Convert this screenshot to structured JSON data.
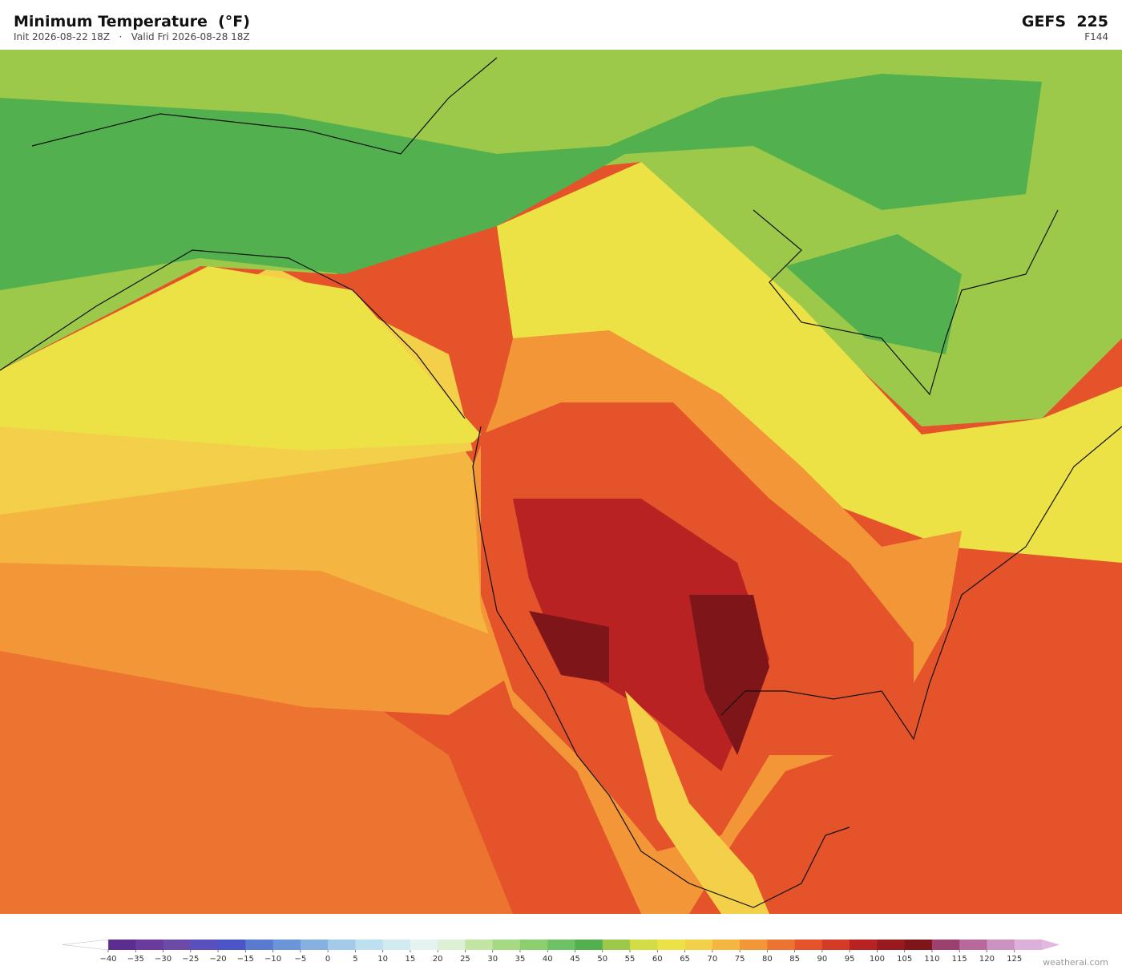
{
  "header": {
    "title": "Minimum Temperature  (°F)",
    "subtitle": "Init 2026-08-22 18Z   ·   Valid Fri 2026-08-28 18Z",
    "model": "GEFS  225",
    "forecast_hour": "F144"
  },
  "colorbar": {
    "bounds": [
      -40,
      130
    ],
    "ticks": [
      {
        "value": -40,
        "label": "−40"
      },
      {
        "value": -35,
        "label": "−35"
      },
      {
        "value": -30,
        "label": "−30"
      },
      {
        "value": -25,
        "label": "−25"
      },
      {
        "value": -20,
        "label": "−20"
      },
      {
        "value": -15,
        "label": "−15"
      },
      {
        "value": -10,
        "label": "−10"
      },
      {
        "value": -5,
        "label": "−5"
      },
      0,
      5,
      10,
      15,
      20,
      25,
      30,
      35,
      40,
      45,
      50,
      55,
      60,
      65,
      70,
      75,
      80,
      85,
      90,
      95,
      100,
      105,
      110,
      115,
      120,
      125
    ],
    "colors": [
      "#5b2d91",
      "#6a3a9e",
      "#6b4aa8",
      "#5a4fbf",
      "#4a55c8",
      "#5a7ad0",
      "#6a95d8",
      "#86b0e0",
      "#a3cbe9",
      "#bde0f0",
      "#d2ebf3",
      "#e3f3ef",
      "#dcf0d4",
      "#c3e5a4",
      "#a6d984",
      "#8ccf6e",
      "#6cc264",
      "#52b04e",
      "#9cc94a",
      "#d2dc45",
      "#ece246",
      "#f4d04a",
      "#f4b640",
      "#f29638",
      "#ed7430",
      "#e4532a",
      "#d43a26",
      "#b82223",
      "#981a1e",
      "#7e1519",
      "#9c4070",
      "#b8689a",
      "#cc92c0",
      "#dcb0d8"
    ],
    "under_color": "#ffffff",
    "over_color": "#e0b8e0"
  },
  "footer": {
    "watermark": "weatherai.com"
  }
}
